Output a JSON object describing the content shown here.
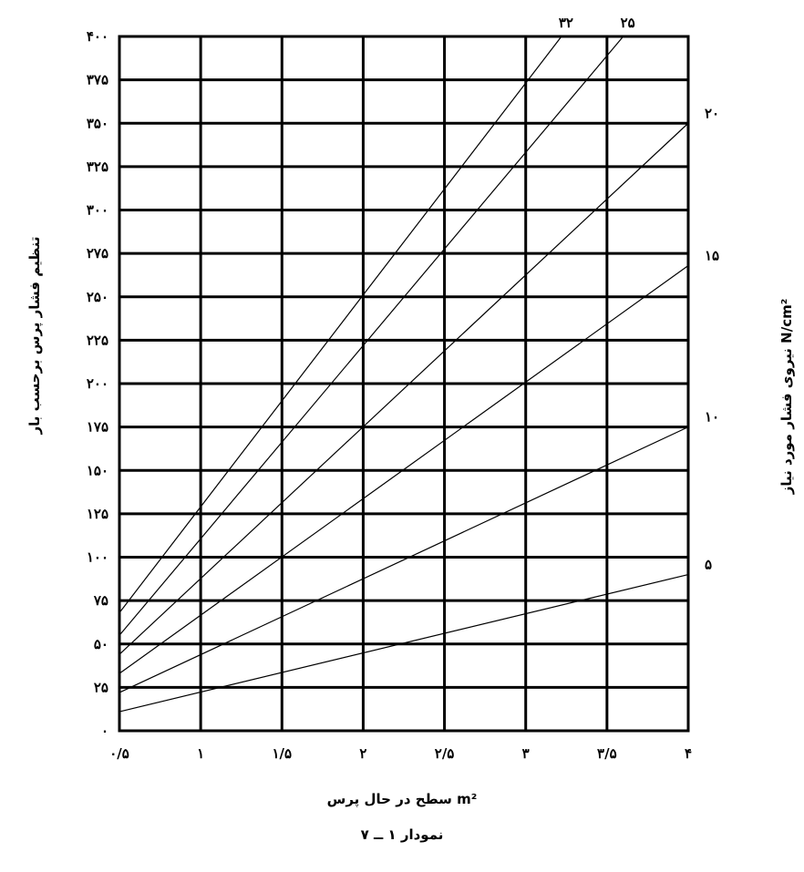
{
  "chart_data": {
    "type": "line",
    "title": "",
    "caption": "نمودار ۱ ــ ۷",
    "xlabel": "سطح در حال پرس m²",
    "ylabel": "تنظیم فشار پرس برحسب بار",
    "y2label": "نیروی فشار مورد نیاز N/cm²",
    "xlim": [
      0.5,
      4
    ],
    "ylim": [
      0,
      400
    ],
    "grid": true,
    "x_ticks": [
      {
        "value": 0.5,
        "label": "۰/۵"
      },
      {
        "value": 1,
        "label": "۱"
      },
      {
        "value": 1.5,
        "label": "۱/۵"
      },
      {
        "value": 2,
        "label": "۲"
      },
      {
        "value": 2.5,
        "label": "۲/۵"
      },
      {
        "value": 3,
        "label": "۳"
      },
      {
        "value": 3.5,
        "label": "۳/۵"
      },
      {
        "value": 4,
        "label": "۴"
      }
    ],
    "y_ticks": [
      {
        "value": 0,
        "label": "۰"
      },
      {
        "value": 25,
        "label": "۲۵"
      },
      {
        "value": 50,
        "label": "۵۰"
      },
      {
        "value": 75,
        "label": "۷۵"
      },
      {
        "value": 100,
        "label": "۱۰۰"
      },
      {
        "value": 125,
        "label": "۱۲۵"
      },
      {
        "value": 150,
        "label": "۱۵۰"
      },
      {
        "value": 175,
        "label": "۱۷۵"
      },
      {
        "value": 200,
        "label": "۲۰۰"
      },
      {
        "value": 225,
        "label": "۲۲۵"
      },
      {
        "value": 250,
        "label": "۲۵۰"
      },
      {
        "value": 275,
        "label": "۲۷۵"
      },
      {
        "value": 300,
        "label": "۳۰۰"
      },
      {
        "value": 325,
        "label": "۳۲۵"
      },
      {
        "value": 350,
        "label": "۳۵۰"
      },
      {
        "value": 375,
        "label": "۳۷۵"
      },
      {
        "value": 400,
        "label": "۴۰۰"
      }
    ],
    "series": [
      {
        "label": "۵",
        "x": [
          0.5,
          4
        ],
        "y": [
          11,
          90
        ]
      },
      {
        "label": "۱۰",
        "x": [
          0.5,
          4
        ],
        "y": [
          22,
          175
        ]
      },
      {
        "label": "۱۵",
        "x": [
          0.5,
          4
        ],
        "y": [
          33,
          268
        ]
      },
      {
        "label": "۲۰",
        "x": [
          0.5,
          4
        ],
        "y": [
          44,
          350
        ]
      },
      {
        "label": "۲۵",
        "x": [
          0.5,
          3.6
        ],
        "y": [
          55,
          400
        ]
      },
      {
        "label": "۳۲",
        "x": [
          0.5,
          3.22
        ],
        "y": [
          68,
          400
        ]
      }
    ]
  }
}
